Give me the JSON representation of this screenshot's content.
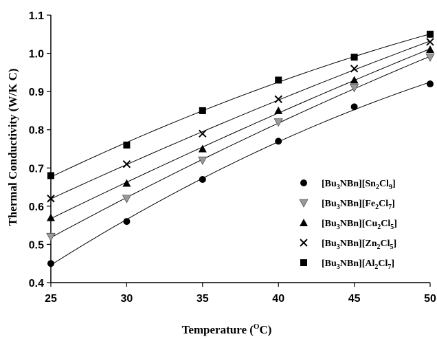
{
  "chart_data": {
    "type": "scatter",
    "xlabel": {
      "main": "Temperature (",
      "sup": "O",
      "post": "C)"
    },
    "ylabel": "Thermal Conductivity (W/K C)",
    "xlim": [
      25,
      50
    ],
    "ylim": [
      0.4,
      1.1
    ],
    "xticks": [
      "25",
      "30",
      "35",
      "40",
      "45",
      "50"
    ],
    "yticks": [
      "0.4",
      "0.5",
      "0.6",
      "0.7",
      "0.8",
      "0.9",
      "1.0",
      "1.1"
    ],
    "grid": false,
    "legend_position": "right",
    "x": [
      25,
      30,
      35,
      40,
      45,
      50
    ],
    "series": [
      {
        "name": "[Bu3NBn][Sn2Cl9]",
        "marker": "circle",
        "color": "#000000",
        "legend": [
          [
            "[Bu",
            ""
          ],
          [
            "3",
            "sub"
          ],
          [
            "NBn][Sn",
            ""
          ],
          [
            "2",
            "sub"
          ],
          [
            "Cl",
            ""
          ],
          [
            "9",
            "sub"
          ],
          [
            "]",
            ""
          ]
        ],
        "values": [
          0.45,
          0.56,
          0.67,
          0.77,
          0.86,
          0.92
        ]
      },
      {
        "name": "[Bu3NBn][Fe2Cl7]",
        "marker": "triangle-down",
        "color": "#9a9a9a",
        "legend": [
          [
            "[Bu",
            ""
          ],
          [
            "3",
            "sub"
          ],
          [
            "NBn][Fe",
            ""
          ],
          [
            "2",
            "sub"
          ],
          [
            "Cl",
            ""
          ],
          [
            "7",
            "sub"
          ],
          [
            "]",
            ""
          ]
        ],
        "values": [
          0.52,
          0.62,
          0.72,
          0.82,
          0.91,
          0.99
        ]
      },
      {
        "name": "[Bu3NBn][Cu2Cl5]",
        "marker": "triangle-up",
        "color": "#000000",
        "legend": [
          [
            "[Bu",
            ""
          ],
          [
            "3",
            "sub"
          ],
          [
            "NBn][Cu",
            ""
          ],
          [
            "2",
            "sub"
          ],
          [
            "Cl",
            ""
          ],
          [
            "5",
            "sub"
          ],
          [
            "]",
            ""
          ]
        ],
        "values": [
          0.57,
          0.66,
          0.75,
          0.85,
          0.93,
          1.01
        ]
      },
      {
        "name": "[Bu3NBn][Zn2Cl5]",
        "marker": "cross",
        "color": "#000000",
        "legend": [
          [
            "[Bu",
            ""
          ],
          [
            "3",
            "sub"
          ],
          [
            "NBn][Zn",
            ""
          ],
          [
            "2",
            "sub"
          ],
          [
            "Cl",
            ""
          ],
          [
            "5",
            "sub"
          ],
          [
            "]",
            ""
          ]
        ],
        "values": [
          0.62,
          0.71,
          0.79,
          0.88,
          0.96,
          1.03
        ]
      },
      {
        "name": "[Bu3NBn][Al2Cl7]",
        "marker": "square",
        "color": "#000000",
        "legend": [
          [
            "[Bu",
            ""
          ],
          [
            "3",
            "sub"
          ],
          [
            "NBn][Al",
            ""
          ],
          [
            "2",
            "sub"
          ],
          [
            "Cl",
            ""
          ],
          [
            "7",
            "sub"
          ],
          [
            "]",
            ""
          ]
        ],
        "values": [
          0.68,
          0.76,
          0.85,
          0.93,
          0.99,
          1.05
        ]
      }
    ]
  }
}
